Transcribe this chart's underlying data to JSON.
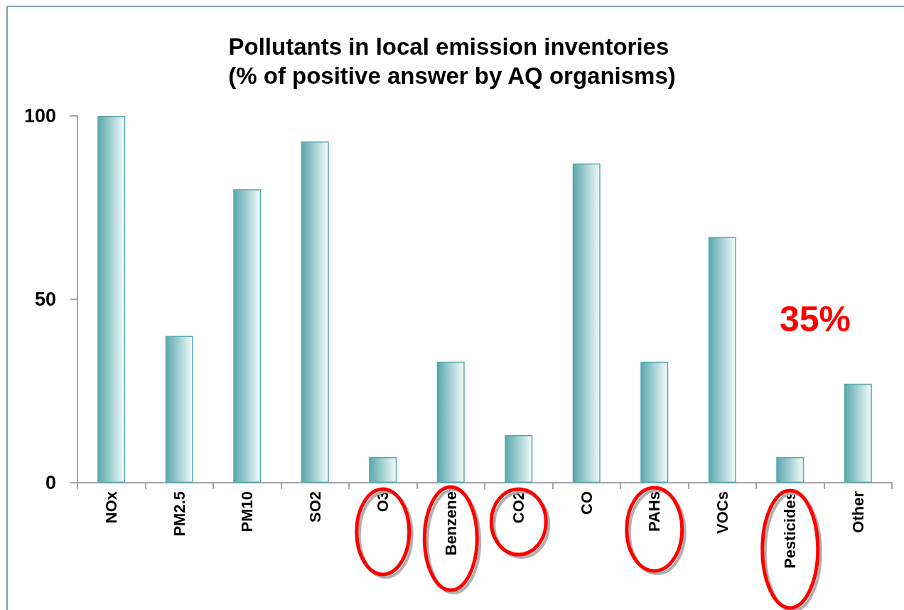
{
  "chart_data": {
    "type": "bar",
    "title": "Pollutants in local emission inventories (% of positive answer by AQ organisms)",
    "categories": [
      "NOx",
      "PM2.5",
      "PM10",
      "SO2",
      "O3",
      "Benzene",
      "CO2",
      "CO",
      "PAHs",
      "VOCs",
      "Pesticides",
      "Other"
    ],
    "values": [
      100,
      40,
      80,
      93,
      7,
      33,
      13,
      87,
      33,
      67,
      7,
      27
    ],
    "color": "#5aa8ae",
    "ylim": [
      0,
      100
    ],
    "yticks": [
      0,
      50,
      100
    ],
    "ref_lines": [
      {
        "axis": "y",
        "value": 35,
        "label": "35%",
        "color": "#ff0000"
      }
    ]
  }
}
